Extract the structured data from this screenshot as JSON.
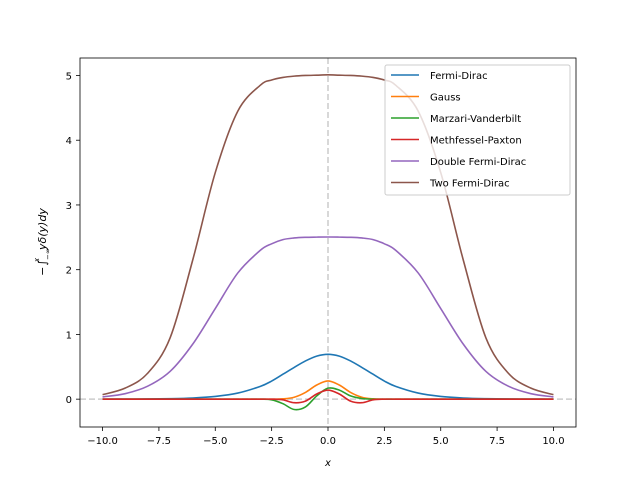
{
  "chart_data": {
    "type": "line",
    "title": "",
    "xlabel": "x",
    "ylabel_parts": {
      "minus": "−",
      "integral": "∫",
      "lower": "−∞",
      "upper": "x",
      "integrand": "yδ(y)dy"
    },
    "xlim": [
      -11.0,
      11.0
    ],
    "ylim": [
      -0.43,
      5.27
    ],
    "x_ticks": [
      -10.0,
      -7.5,
      -5.0,
      -2.5,
      0.0,
      2.5,
      5.0,
      7.5,
      10.0
    ],
    "x_tick_labels": [
      "−10.0",
      "−7.5",
      "−5.0",
      "−2.5",
      "0.0",
      "2.5",
      "5.0",
      "7.5",
      "10.0"
    ],
    "y_ticks": [
      0,
      1,
      2,
      3,
      4,
      5
    ],
    "y_tick_labels": [
      "0",
      "1",
      "2",
      "3",
      "4",
      "5"
    ],
    "reference_lines": [
      {
        "orientation": "vertical",
        "value": 0,
        "style": "dashed",
        "color": "#cccccc"
      },
      {
        "orientation": "horizontal",
        "value": 0,
        "style": "dashed",
        "color": "#cccccc"
      }
    ],
    "legend_position": "upper right",
    "x": [
      -10,
      -9,
      -8,
      -7,
      -6,
      -5,
      -4,
      -3,
      -2.5,
      -2,
      -1.5,
      -1,
      -0.5,
      0,
      0.5,
      1,
      1.5,
      2,
      2.5,
      3,
      4,
      5,
      6,
      7,
      8,
      9,
      10
    ],
    "series": [
      {
        "name": "Fermi-Dirac",
        "color": "#1f77b4",
        "values": [
          0.0005,
          0.0012,
          0.003,
          0.0075,
          0.018,
          0.042,
          0.094,
          0.198,
          0.28,
          0.385,
          0.49,
          0.59,
          0.665,
          0.693,
          0.665,
          0.59,
          0.49,
          0.385,
          0.28,
          0.198,
          0.094,
          0.042,
          0.018,
          0.0075,
          0.003,
          0.0012,
          0.0005
        ]
      },
      {
        "name": "Gauss",
        "color": "#ff7f0e",
        "values": [
          0,
          0,
          0,
          0,
          0,
          0,
          0,
          0,
          0,
          0.005,
          0.03,
          0.104,
          0.219,
          0.282,
          0.219,
          0.104,
          0.03,
          0.005,
          0,
          0,
          0,
          0,
          0,
          0,
          0,
          0,
          0
        ]
      },
      {
        "name": "Marzari-Vanderbilt",
        "color": "#2ca02c",
        "values": [
          0,
          0,
          0,
          0,
          0,
          0,
          0,
          0,
          -0.01,
          -0.07,
          -0.16,
          -0.12,
          0.05,
          0.17,
          0.14,
          0.05,
          0.01,
          0,
          0,
          0,
          0,
          0,
          0,
          0,
          0,
          0,
          0
        ]
      },
      {
        "name": "Methfessel-Paxton",
        "color": "#d62728",
        "values": [
          0,
          0,
          0,
          0,
          0,
          0,
          0,
          0,
          0,
          -0.01,
          -0.055,
          -0.03,
          0.08,
          0.141,
          0.08,
          -0.03,
          -0.055,
          -0.01,
          0,
          0,
          0,
          0,
          0,
          0,
          0,
          0,
          0
        ]
      },
      {
        "name": "Double Fermi-Dirac",
        "color": "#9467bd",
        "values": [
          0.035,
          0.085,
          0.2,
          0.43,
          0.85,
          1.4,
          1.95,
          2.3,
          2.4,
          2.465,
          2.49,
          2.5,
          2.503,
          2.505,
          2.503,
          2.5,
          2.49,
          2.465,
          2.4,
          2.3,
          1.95,
          1.4,
          0.85,
          0.43,
          0.2,
          0.085,
          0.035
        ]
      },
      {
        "name": "Two Fermi-Dirac",
        "color": "#8c564b",
        "values": [
          0.07,
          0.17,
          0.4,
          0.95,
          2.15,
          3.5,
          4.45,
          4.85,
          4.93,
          4.97,
          4.99,
          5.0,
          5.005,
          5.01,
          5.005,
          5.0,
          4.99,
          4.97,
          4.93,
          4.85,
          4.45,
          3.5,
          2.15,
          0.95,
          0.4,
          0.17,
          0.07
        ]
      }
    ]
  }
}
